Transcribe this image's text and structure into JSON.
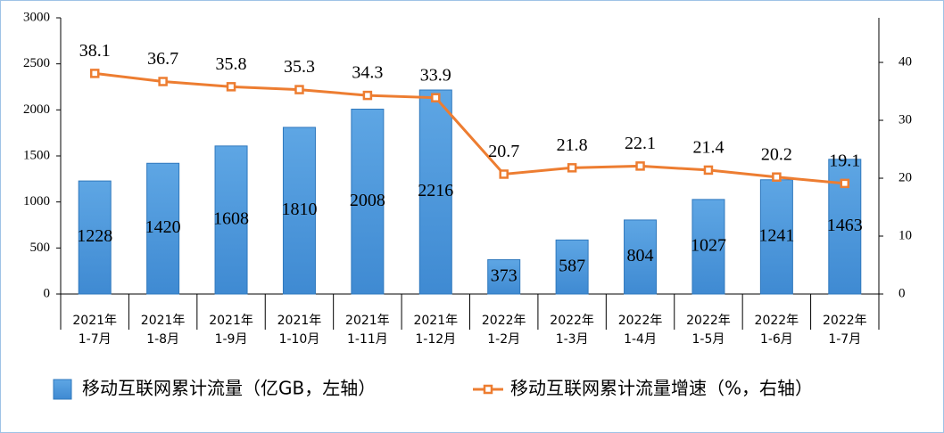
{
  "chart_data": {
    "type": "bar-line",
    "categories": [
      [
        "2021年",
        "1-7月"
      ],
      [
        "2021年",
        "1-8月"
      ],
      [
        "2021年",
        "1-9月"
      ],
      [
        "2021年",
        "1-10月"
      ],
      [
        "2021年",
        "1-11月"
      ],
      [
        "2021年",
        "1-12月"
      ],
      [
        "2022年",
        "1-2月"
      ],
      [
        "2022年",
        "1-3月"
      ],
      [
        "2022年",
        "1-4月"
      ],
      [
        "2022年",
        "1-5月"
      ],
      [
        "2022年",
        "1-6月"
      ],
      [
        "2022年",
        "1-7月"
      ]
    ],
    "series": [
      {
        "name": "移动互联网累计流量（亿GB，左轴）",
        "type": "bar",
        "color": "#5ea6e4",
        "values": [
          1228,
          1420,
          1608,
          1810,
          2008,
          2216,
          373,
          587,
          804,
          1027,
          1241,
          1463
        ]
      },
      {
        "name": "移动互联网累计流量增速（%，右轴）",
        "type": "line",
        "axis": "y2",
        "color": "#ed7d31",
        "values": [
          38.1,
          36.7,
          35.8,
          35.3,
          34.3,
          33.9,
          20.7,
          21.8,
          22.1,
          21.4,
          20.2,
          19.1
        ]
      }
    ],
    "ylim": [
      0,
      3000
    ],
    "yticks": [
      0,
      500,
      1000,
      1500,
      2000,
      2500,
      3000
    ],
    "y2lim": [
      0,
      47.7
    ],
    "y2ticks": [
      0,
      10,
      20,
      30,
      40
    ],
    "legend": "bottom"
  }
}
